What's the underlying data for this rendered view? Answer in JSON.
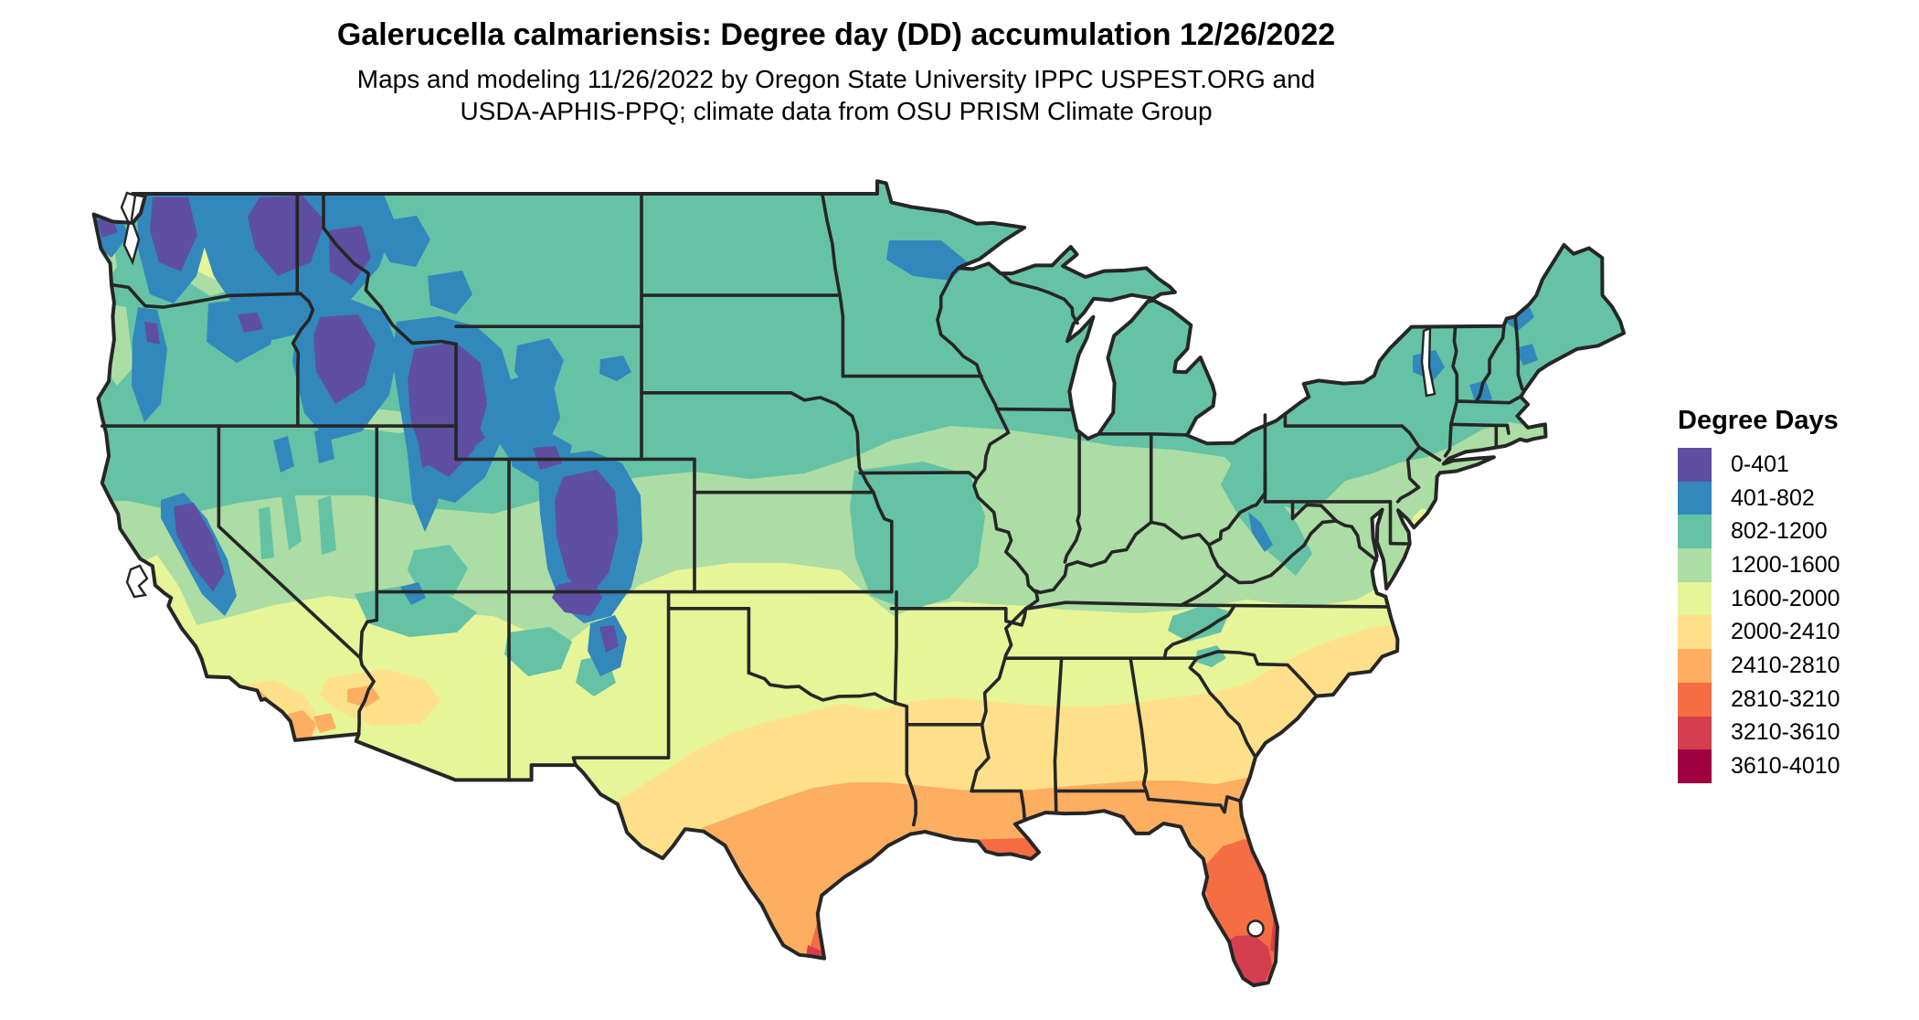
{
  "header": {
    "title": "Galerucella calmariensis: Degree day (DD) accumulation 12/26/2022",
    "subtitle_line1": "Maps and modeling 11/26/2022 by Oregon State University IPPC USPEST.ORG and",
    "subtitle_line2": "USDA-APHIS-PPQ; climate data from OSU PRISM Climate Group"
  },
  "legend": {
    "title": "Degree Days",
    "items": [
      {
        "label": "0-401",
        "color": "#5e4fa2"
      },
      {
        "label": "401-802",
        "color": "#3288bd"
      },
      {
        "label": "802-1200",
        "color": "#66c2a5"
      },
      {
        "label": "1200-1600",
        "color": "#abdda4"
      },
      {
        "label": "1600-2000",
        "color": "#e6f598"
      },
      {
        "label": "2000-2410",
        "color": "#fee08b"
      },
      {
        "label": "2410-2810",
        "color": "#fdae61"
      },
      {
        "label": "2810-3210",
        "color": "#f46d43"
      },
      {
        "label": "3210-3610",
        "color": "#d53e4f"
      },
      {
        "label": "3610-4010",
        "color": "#9e0142"
      }
    ]
  },
  "map": {
    "region": "Conterminous United States",
    "border_color": "#262626",
    "water_color": "#ffffff"
  },
  "chart_data": {
    "type": "choropleth-map",
    "title": "Galerucella calmariensis: Degree day (DD) accumulation 12/26/2022",
    "legend_title": "Degree Days",
    "classes": [
      "0-401",
      "401-802",
      "802-1200",
      "1200-1600",
      "1600-2000",
      "2000-2410",
      "2410-2810",
      "2810-3210",
      "3210-3610",
      "3610-4010"
    ],
    "class_colors": [
      "#5e4fa2",
      "#3288bd",
      "#66c2a5",
      "#abdda4",
      "#e6f598",
      "#fee08b",
      "#fdae61",
      "#f46d43",
      "#d53e4f",
      "#9e0142"
    ],
    "pattern": "Degree days increase from north (802-1200) to south; lowest values over western mountain ranges (Cascades, Rockies, Sierra Nevada 0-802); highest values in south Florida and south Texas (3210-4010)"
  }
}
